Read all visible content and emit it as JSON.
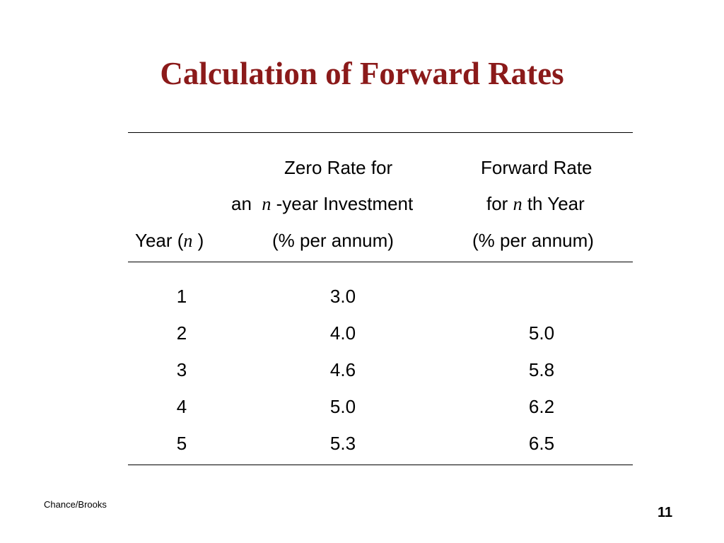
{
  "slide": {
    "title": "Calculation of Forward Rates"
  },
  "table": {
    "header": {
      "zero_line1": "Zero Rate for",
      "zero_line2_pre": "an",
      "zero_line2_var": "n",
      "zero_line2_post": "-year Investment",
      "zero_line3": "(% per annum)",
      "fwd_line1": "Forward Rate",
      "fwd_line2_pre": "for",
      "fwd_line2_var": "n",
      "fwd_line2_post": "th Year",
      "fwd_line3": "(% per annum)",
      "year_pre": "Year (",
      "year_var": "n",
      "year_post": ")"
    },
    "rows": [
      {
        "year": "1",
        "zero": "3.0",
        "forward": ""
      },
      {
        "year": "2",
        "zero": "4.0",
        "forward": "5.0"
      },
      {
        "year": "3",
        "zero": "4.6",
        "forward": "5.8"
      },
      {
        "year": "4",
        "zero": "5.0",
        "forward": "6.2"
      },
      {
        "year": "5",
        "zero": "5.3",
        "forward": "6.5"
      }
    ]
  },
  "footer": {
    "author": "Chance/Brooks",
    "page_number": "11"
  },
  "colors": {
    "title": "#8B1A1A",
    "text": "#000000",
    "background": "#ffffff"
  }
}
